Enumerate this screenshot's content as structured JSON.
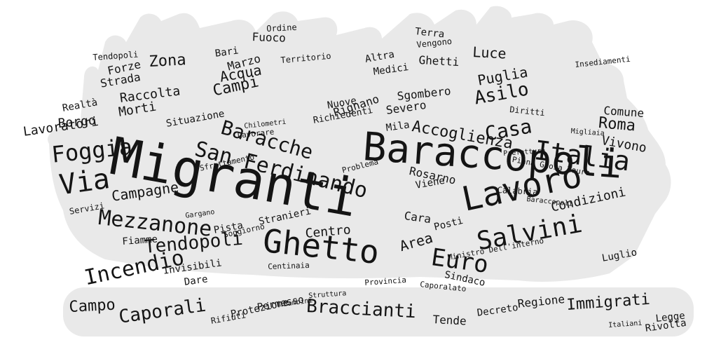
{
  "colors": {
    "background": "#ffffff",
    "shape": "#e9e9e9",
    "text": "#141414"
  },
  "words": [
    "Migranti",
    "Baraccopoli",
    "Lavoro",
    "Ghetto",
    "Italia",
    "Salvini",
    "Mezzanone",
    "Via",
    "Foggia",
    "San Ferdinando",
    "Baracche",
    "Euro",
    "Incendio",
    "Tendopoli",
    "Casa",
    "Accoglienza",
    "Braccianti",
    "Caporali",
    "Campo",
    "Immigrati",
    "Campagne",
    "Asilo",
    "Roma",
    "Condizioni",
    "Area",
    "Centro",
    "Zona",
    "Puglia",
    "Luce",
    "Campi",
    "Acqua",
    "Marzo",
    "Vivono",
    "Sindaco",
    "Posti",
    "Cara",
    "Rosarno",
    "Calabria",
    "Rignano",
    "Nuove",
    "Severo",
    "Raccolta",
    "Morti",
    "Strada",
    "Forze",
    "Terra",
    "Ghetti",
    "Fuoco",
    "Ordine",
    "Bari",
    "Territorio",
    "Medici",
    "Sgombero",
    "Altra",
    "Regione",
    "Tende",
    "Permesso",
    "Protezione",
    "Rifiuti",
    "Decreto",
    "Legge",
    "Rivolta",
    "Italiani",
    "Luglio",
    "Borgo",
    "Lavoratori",
    "Realtà",
    "Diritti",
    "Comune",
    "Fiamme",
    "Invisibili",
    "Dare",
    "Situazione",
    "Problema",
    "Mila",
    "Stranieri",
    "Servizi",
    "Provincia",
    "Caporalato",
    "Soggiorno",
    "Centinaia",
    "Lavorare",
    "Insediamenti",
    "Prefettura",
    "Ministro Dell'interno",
    "Bambini",
    "Struttura",
    "Chilometri",
    "Richiedenti",
    "Sfruttamento",
    "Vengono",
    "Viene",
    "Pista",
    "Migliaia",
    "Piana Gioia Tauro",
    "Gargano",
    "Baraccopoli",
    "Tendopoli"
  ]
}
